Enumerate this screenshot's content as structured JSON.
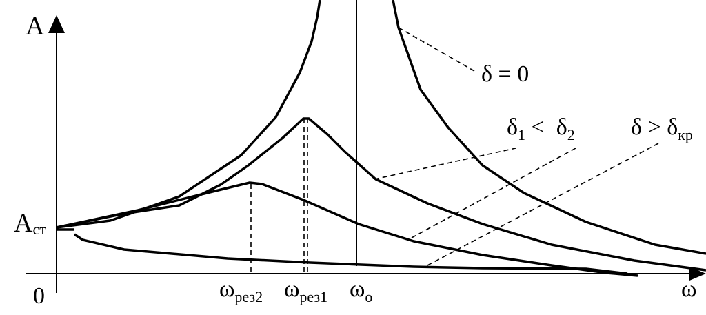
{
  "axis": {
    "y_label": "A",
    "x_label": "ω",
    "origin": "0",
    "static_amplitude": {
      "main": "A",
      "sub": "ст"
    }
  },
  "frequencies": {
    "res2": {
      "main": "ω",
      "sub": "рез2"
    },
    "res1": {
      "main": "ω",
      "sub": "рез1"
    },
    "natural": {
      "main": "ω",
      "sub": "о"
    }
  },
  "curves": {
    "undamped": {
      "main": "δ = 0"
    },
    "damped": {
      "a": "δ",
      "a_sub": "1",
      "rel": " <  ",
      "b": "δ",
      "b_sub": "2"
    },
    "overdamped": {
      "a": "δ > δ",
      "a_sub": "кр"
    }
  }
}
